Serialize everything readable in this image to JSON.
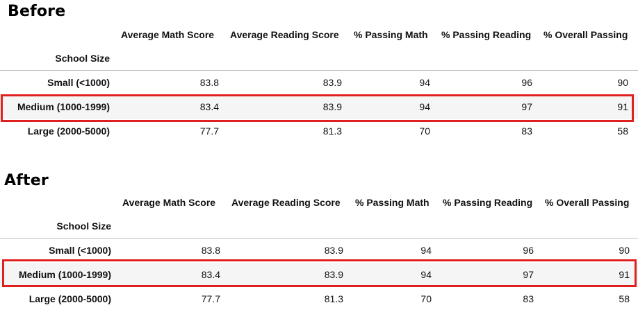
{
  "sections": [
    {
      "title": "Before",
      "index_name": "School Size",
      "columns": [
        "Average Math Score",
        "Average Reading Score",
        "% Passing Math",
        "% Passing Reading",
        "% Overall Passing"
      ],
      "rows": [
        {
          "label": "Small (<1000)",
          "values": [
            "83.8",
            "83.9",
            "94",
            "96",
            "90"
          ]
        },
        {
          "label": "Medium (1000-1999)",
          "values": [
            "83.4",
            "83.9",
            "94",
            "97",
            "91"
          ]
        },
        {
          "label": "Large (2000-5000)",
          "values": [
            "77.7",
            "81.3",
            "70",
            "83",
            "58"
          ]
        }
      ],
      "highlighted_row": "Medium (1000-1999)"
    },
    {
      "title": "After",
      "index_name": "School Size",
      "columns": [
        "Average Math Score",
        "Average Reading Score",
        "% Passing Math",
        "% Passing Reading",
        "% Overall Passing"
      ],
      "rows": [
        {
          "label": "Small (<1000)",
          "values": [
            "83.8",
            "83.9",
            "94",
            "96",
            "90"
          ]
        },
        {
          "label": "Medium (1000-1999)",
          "values": [
            "83.4",
            "83.9",
            "94",
            "97",
            "91"
          ]
        },
        {
          "label": "Large (2000-5000)",
          "values": [
            "77.7",
            "81.3",
            "70",
            "83",
            "58"
          ]
        }
      ],
      "highlighted_row": "Medium (1000-1999)"
    }
  ],
  "colors": {
    "highlight_border": "#e0201f",
    "striped_row": "#f5f5f5",
    "rule": "#bdbdbd"
  }
}
